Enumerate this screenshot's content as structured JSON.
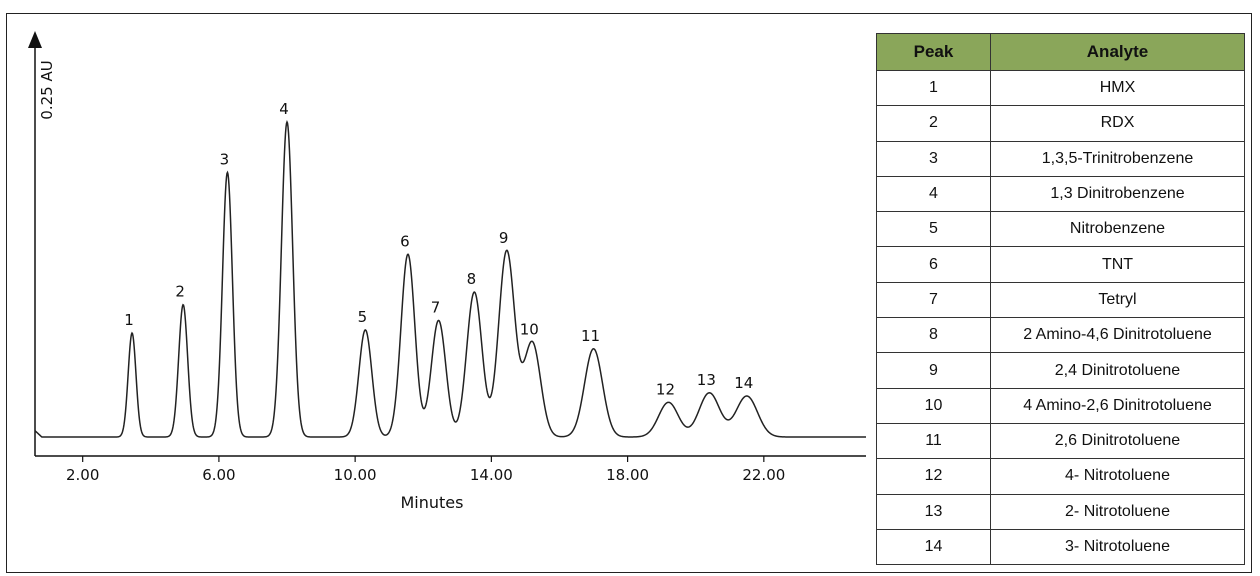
{
  "chart_data": {
    "type": "line",
    "xlabel": "Minutes",
    "ylabel": "0.25 AU",
    "xlim": [
      0.6,
      25.0
    ],
    "ylim": [
      0,
      1.0
    ],
    "xticks": [
      2.0,
      6.0,
      10.0,
      14.0,
      18.0,
      22.0
    ],
    "xtick_labels": [
      "2.00",
      "6.00",
      "10.00",
      "14.00",
      "18.00",
      "22.00"
    ],
    "grid": false,
    "legend": "right table",
    "peaks": [
      {
        "label": "1",
        "x": 3.45,
        "y": 0.33
      },
      {
        "label": "2",
        "x": 4.95,
        "y": 0.42
      },
      {
        "label": "3",
        "x": 6.25,
        "y": 0.84
      },
      {
        "label": "4",
        "x": 8.0,
        "y": 1.0
      },
      {
        "label": "5",
        "x": 10.3,
        "y": 0.34
      },
      {
        "label": "6",
        "x": 11.55,
        "y": 0.58
      },
      {
        "label": "7",
        "x": 12.45,
        "y": 0.37
      },
      {
        "label": "8",
        "x": 13.5,
        "y": 0.46
      },
      {
        "label": "9",
        "x": 14.45,
        "y": 0.59
      },
      {
        "label": "10",
        "x": 15.2,
        "y": 0.3
      },
      {
        "label": "11",
        "x": 17.0,
        "y": 0.28
      },
      {
        "label": "12",
        "x": 19.2,
        "y": 0.11
      },
      {
        "label": "13",
        "x": 20.4,
        "y": 0.14
      },
      {
        "label": "14",
        "x": 21.5,
        "y": 0.13
      }
    ]
  },
  "legend_table": {
    "headers": [
      "Peak",
      "Analyte"
    ],
    "rows": [
      [
        "1",
        "HMX"
      ],
      [
        "2",
        "RDX"
      ],
      [
        "3",
        "1,3,5-Trinitrobenzene"
      ],
      [
        "4",
        "1,3 Dinitrobenzene"
      ],
      [
        "5",
        "Nitrobenzene"
      ],
      [
        "6",
        "TNT"
      ],
      [
        "7",
        "Tetryl"
      ],
      [
        "8",
        "2 Amino-4,6 Dinitrotoluene"
      ],
      [
        "9",
        "2,4 Dinitrotoluene"
      ],
      [
        "10",
        "4 Amino-2,6 Dinitrotoluene"
      ],
      [
        "11",
        "2,6 Dinitrotoluene"
      ],
      [
        "12",
        "4- Nitrotoluene"
      ],
      [
        "13",
        "2- Nitrotoluene"
      ],
      [
        "14",
        "3- Nitrotoluene"
      ]
    ]
  }
}
